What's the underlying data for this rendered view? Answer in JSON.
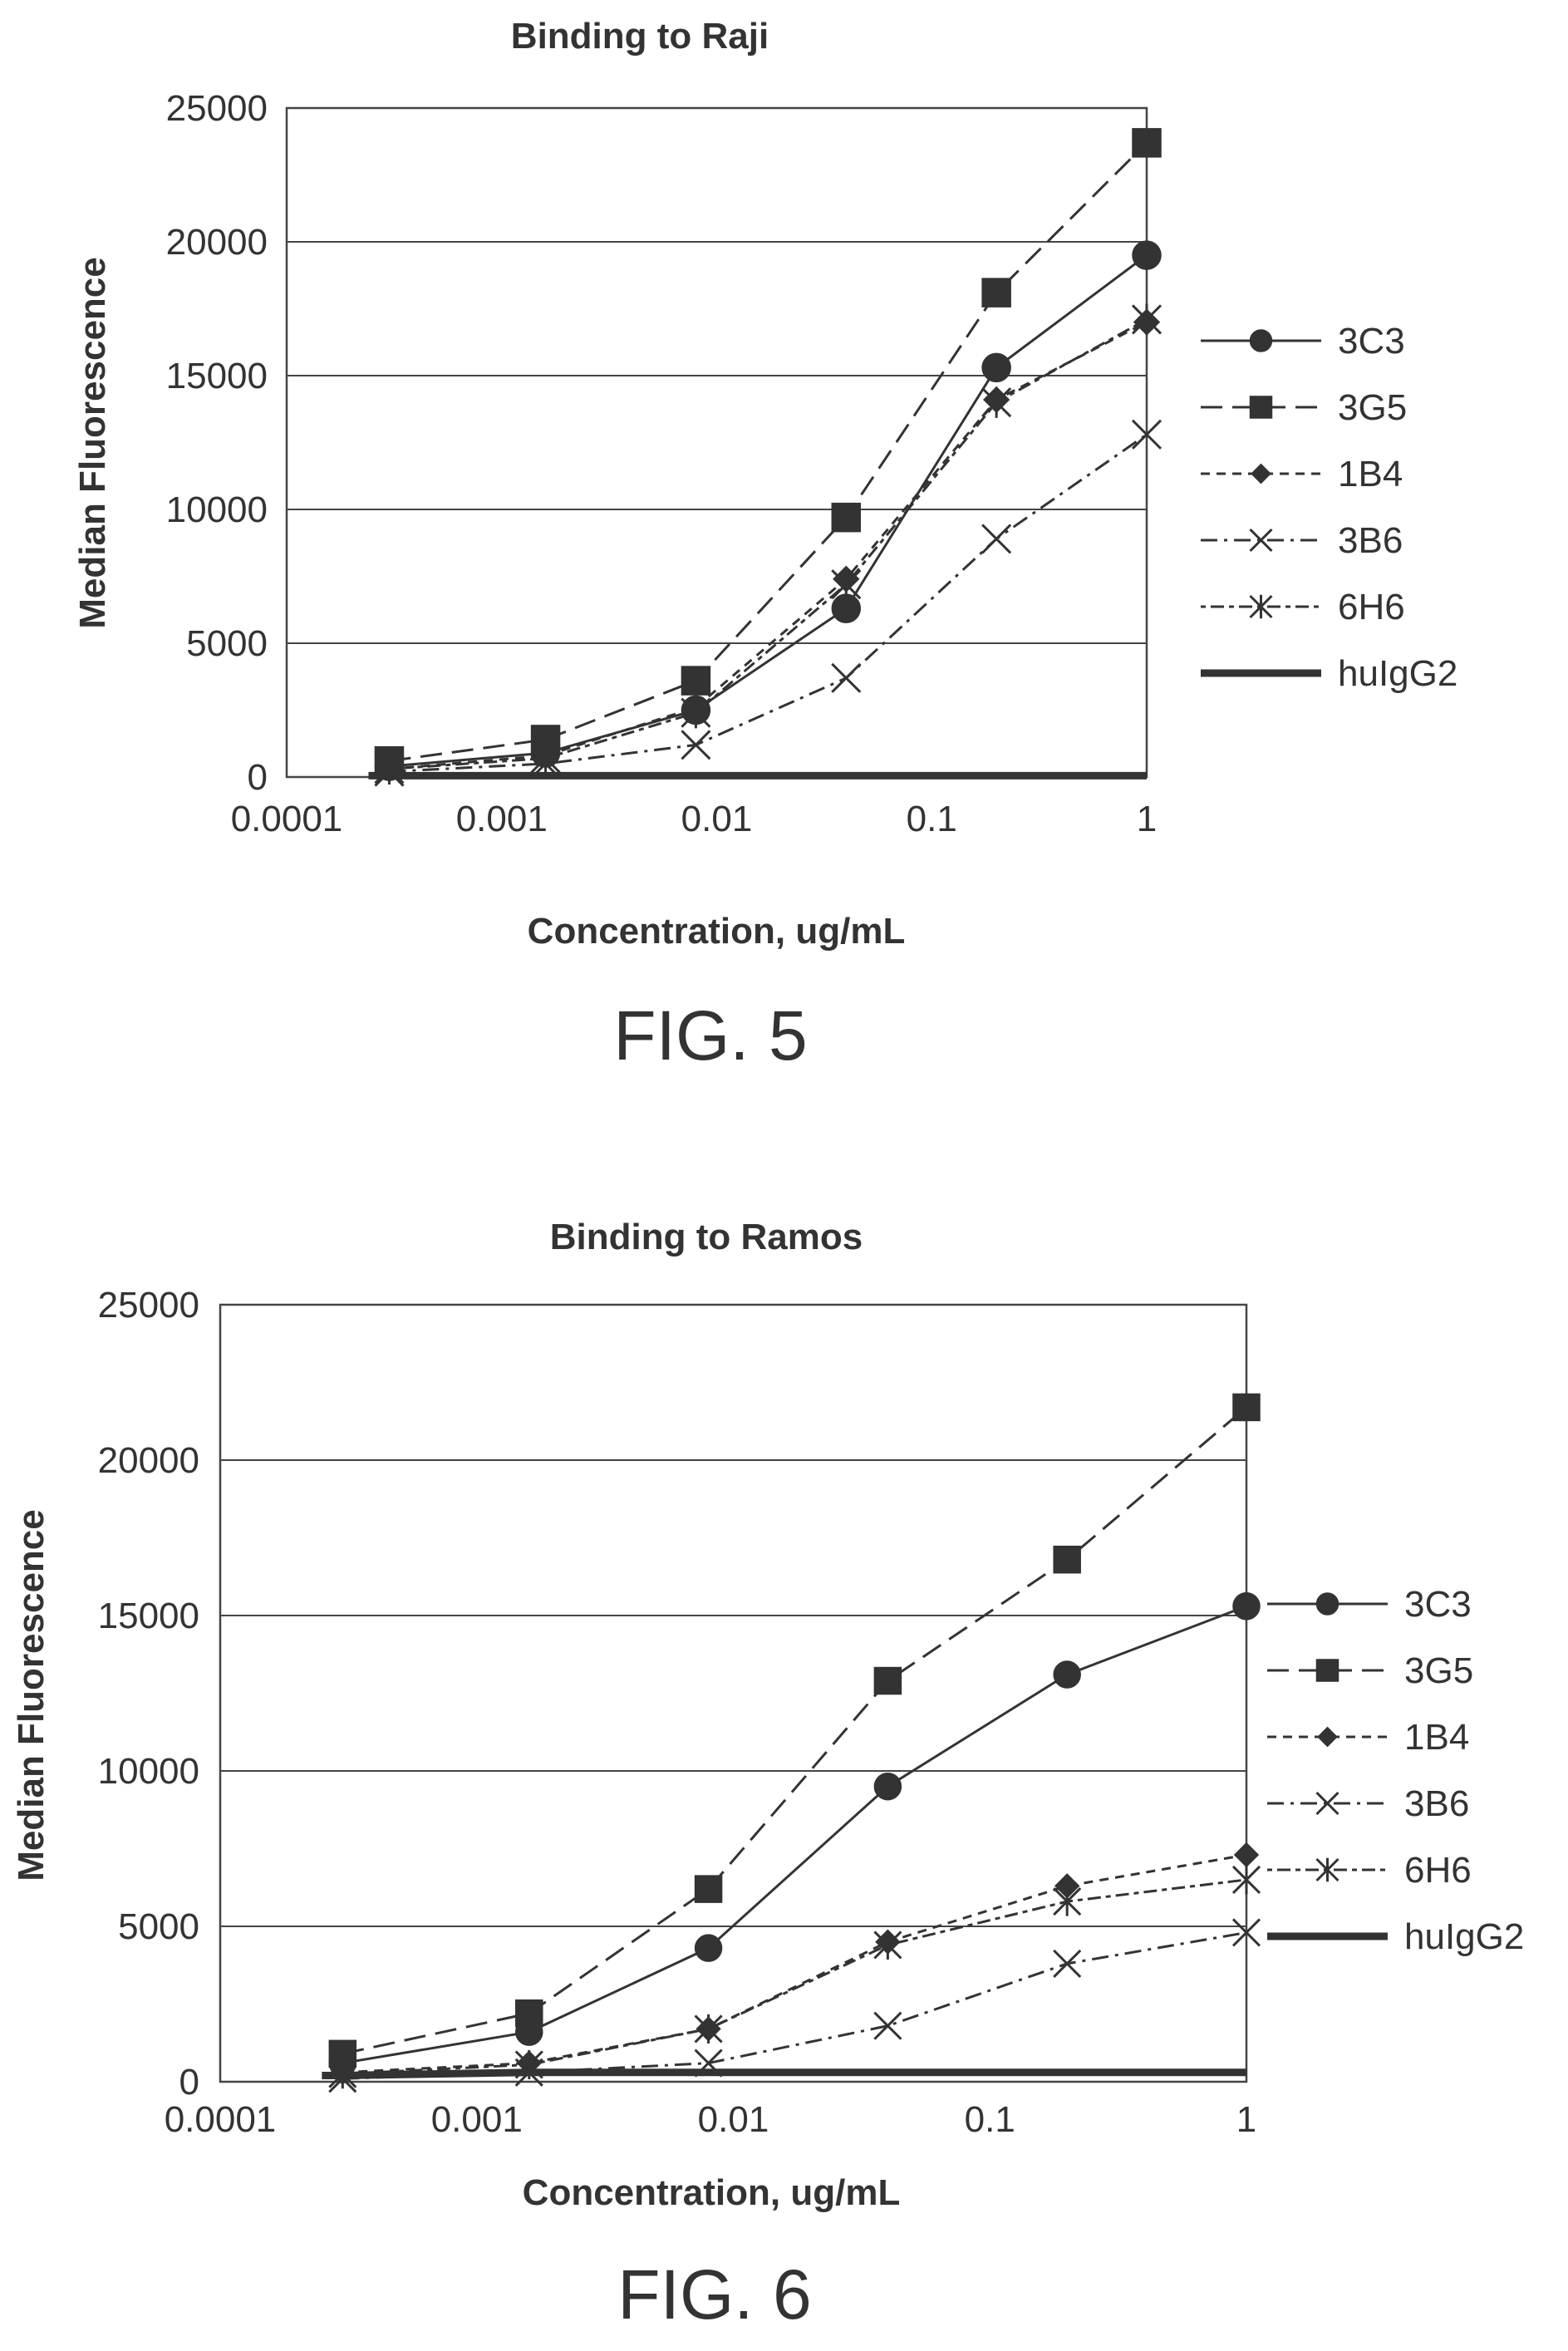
{
  "colors": {
    "ink": "#333333",
    "grid": "#444444"
  },
  "chart_data": [
    {
      "type": "line",
      "title": "Binding to Raji",
      "xlabel": "Concentration, ug/mL",
      "ylabel": "Median Fluorescence",
      "x_scale": "log",
      "xlim": [
        0.0001,
        1
      ],
      "ylim": [
        0,
        25000
      ],
      "xticks": [
        "0.0001",
        "0.001",
        "0.01",
        "0.1",
        "1"
      ],
      "yticks": [
        "0",
        "5000",
        "10000",
        "15000",
        "20000",
        "25000"
      ],
      "grid": "horizontal",
      "legend_position": "right",
      "caption": "FIG. 5",
      "x": [
        0.0003,
        0.0016,
        0.008,
        0.04,
        0.2,
        1
      ],
      "series": [
        {
          "name": "3C3",
          "marker": "circle",
          "dash": "solid",
          "values": [
            400,
            900,
            2500,
            6300,
            15300,
            19500
          ]
        },
        {
          "name": "3G5",
          "marker": "square",
          "dash": "long",
          "values": [
            600,
            1400,
            3600,
            9700,
            18100,
            23700
          ]
        },
        {
          "name": "1B4",
          "marker": "diamond",
          "dash": "short",
          "values": [
            300,
            800,
            2600,
            7400,
            14100,
            17000
          ]
        },
        {
          "name": "3B6",
          "marker": "x",
          "dash": "dashdot",
          "values": [
            200,
            500,
            1200,
            3700,
            8900,
            12800
          ]
        },
        {
          "name": "6H6",
          "marker": "star",
          "dash": "dotdash",
          "values": [
            300,
            700,
            2400,
            7200,
            14000,
            17100
          ]
        },
        {
          "name": "huIgG2",
          "marker": "none",
          "dash": "thick",
          "values": [
            50,
            50,
            50,
            50,
            50,
            50
          ]
        }
      ]
    },
    {
      "type": "line",
      "title": "Binding to Ramos",
      "xlabel": "Concentration, ug/mL",
      "ylabel": "Median Fluorescence",
      "x_scale": "log",
      "xlim": [
        0.0001,
        1
      ],
      "ylim": [
        0,
        25000
      ],
      "xticks": [
        "0.0001",
        "0.001",
        "0.01",
        "0.1",
        "1"
      ],
      "yticks": [
        "0",
        "5000",
        "10000",
        "15000",
        "20000",
        "25000"
      ],
      "grid": "horizontal",
      "legend_position": "right",
      "caption": "FIG. 6",
      "x": [
        0.0003,
        0.0016,
        0.008,
        0.04,
        0.2,
        1
      ],
      "series": [
        {
          "name": "3C3",
          "marker": "circle",
          "dash": "solid",
          "values": [
            600,
            1600,
            4300,
            9500,
            13100,
            15300
          ]
        },
        {
          "name": "3G5",
          "marker": "square",
          "dash": "long",
          "values": [
            900,
            2200,
            6200,
            12900,
            16800,
            21700
          ]
        },
        {
          "name": "1B4",
          "marker": "diamond",
          "dash": "short",
          "values": [
            300,
            600,
            1700,
            4500,
            6300,
            7300
          ]
        },
        {
          "name": "3B6",
          "marker": "x",
          "dash": "dashdot",
          "values": [
            100,
            300,
            600,
            1800,
            3800,
            4800
          ]
        },
        {
          "name": "6H6",
          "marker": "star",
          "dash": "dotdash",
          "values": [
            250,
            550,
            1700,
            4400,
            5800,
            6500
          ]
        },
        {
          "name": "huIgG2",
          "marker": "none",
          "dash": "thick",
          "values": [
            200,
            300,
            300,
            300,
            300,
            300
          ]
        }
      ]
    }
  ]
}
